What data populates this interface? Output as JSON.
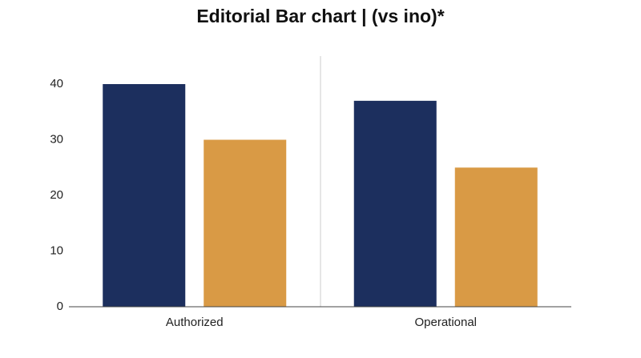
{
  "chart_data": {
    "type": "bar",
    "title": "Editorial Bar chart | (vs ino)*",
    "categories": [
      "Authorized",
      "Operational"
    ],
    "series": [
      {
        "color": "#1c2f5e",
        "values": [
          40,
          37
        ]
      },
      {
        "color": "#d99a45",
        "values": [
          30,
          25
        ]
      }
    ],
    "ylim": [
      0,
      45
    ],
    "yticks": [
      0,
      10,
      20,
      30,
      40
    ],
    "grid": false
  }
}
